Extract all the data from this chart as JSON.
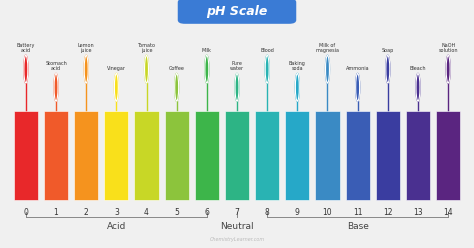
{
  "title": "pH Scale",
  "title_bg": "#3a7bd5",
  "title_color": "#ffffff",
  "bar_colors": [
    "#e8282a",
    "#f05a2a",
    "#f5931e",
    "#f9e01b",
    "#c8d726",
    "#8cc43c",
    "#3db54a",
    "#2db485",
    "#29b3b3",
    "#26a8c8",
    "#3a8ac4",
    "#3a5db5",
    "#3a3da0",
    "#4a3090",
    "#5a2580"
  ],
  "ph_values": [
    0,
    1,
    2,
    3,
    4,
    5,
    6,
    7,
    8,
    9,
    10,
    11,
    12,
    13,
    14
  ],
  "labels": [
    "Battery\nacid",
    "Stomach\nacid",
    "Lemon\njuice",
    "Vinegar",
    "Tomato\njuice",
    "Coffee",
    "Milk",
    "Pure\nwater",
    "Blood",
    "Baking\nsoda",
    "Milk of\nmagnesia",
    "Ammonia",
    "Soap",
    "Bleach",
    "NaOH\nsolution"
  ],
  "label_high": [
    true,
    false,
    true,
    false,
    true,
    false,
    true,
    false,
    true,
    false,
    true,
    false,
    true,
    false,
    true
  ],
  "acid_label": "Acid",
  "neutral_label": "Neutral",
  "base_label": "Base",
  "watermark": "ChemistryLearner.com",
  "bg_color": "#f0f0f0"
}
